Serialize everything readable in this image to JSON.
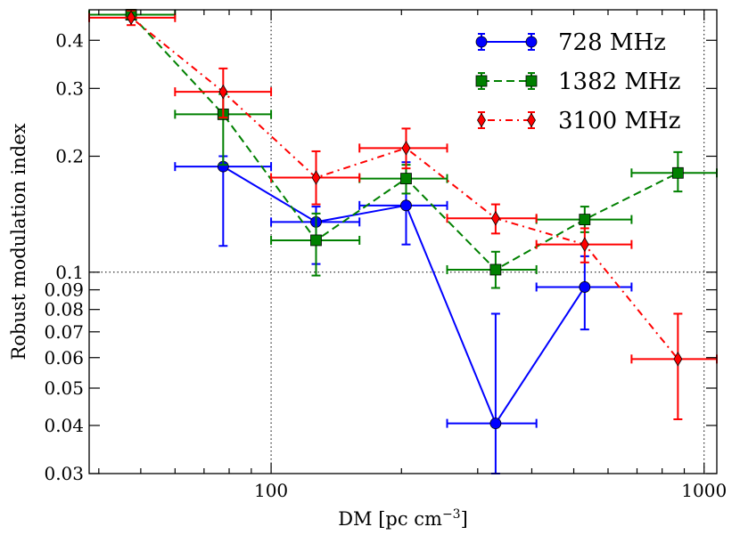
{
  "chart_data": {
    "type": "scatter",
    "title": "",
    "xlabel": "DM [pc cm",
    "xlabel_sup": "−3",
    "xlabel_end": "]",
    "ylabel": "Robust modulation index",
    "xscale": "log",
    "yscale": "log",
    "xlim": [
      38,
      1070
    ],
    "ylim": [
      0.03,
      0.48
    ],
    "x_ticks": [
      {
        "value": 100,
        "label": "100"
      },
      {
        "value": 1000,
        "label": "1000"
      }
    ],
    "y_ticks": [
      {
        "value": 0.4,
        "label": "0.4"
      },
      {
        "value": 0.3,
        "label": "0.3"
      },
      {
        "value": 0.2,
        "label": "0.2"
      },
      {
        "value": 0.1,
        "label": "0.1"
      },
      {
        "value": 0.09,
        "label": "0.09"
      },
      {
        "value": 0.08,
        "label": "0.08"
      },
      {
        "value": 0.07,
        "label": "0.07"
      },
      {
        "value": 0.06,
        "label": "0.06"
      },
      {
        "value": 0.05,
        "label": "0.05"
      },
      {
        "value": 0.04,
        "label": "0.04"
      },
      {
        "value": 0.03,
        "label": "0.03"
      }
    ],
    "reference_lines": {
      "x": [
        100,
        1000
      ],
      "y": [
        0.1
      ]
    },
    "legend_position": "top-right",
    "series": [
      {
        "name": "728 MHz",
        "color": "#0000ff",
        "marker": "circle",
        "linestyle": "solid",
        "points": [
          {
            "x": 77.5,
            "y": 0.188,
            "xlo": 60,
            "xhi": 100,
            "ylo": 0.117,
            "yhi": 0.2
          },
          {
            "x": 127,
            "y": 0.135,
            "xlo": 100,
            "xhi": 160,
            "ylo": 0.105,
            "yhi": 0.148
          },
          {
            "x": 205,
            "y": 0.149,
            "xlo": 160,
            "xhi": 255,
            "ylo": 0.118,
            "yhi": 0.193
          },
          {
            "x": 330,
            "y": 0.0405,
            "xlo": 255,
            "xhi": 410,
            "ylo": 0.03,
            "yhi": 0.078
          },
          {
            "x": 530,
            "y": 0.0915,
            "xlo": 410,
            "xhi": 680,
            "ylo": 0.071,
            "yhi": 0.11
          }
        ]
      },
      {
        "name": "1382 MHz",
        "color": "#008000",
        "marker": "square",
        "linestyle": "dashed",
        "points": [
          {
            "x": 47.5,
            "y": 0.466,
            "xlo": 38,
            "xhi": 60,
            "ylo": 0.455,
            "yhi": 0.48
          },
          {
            "x": 77.5,
            "y": 0.257,
            "xlo": 60,
            "xhi": 100,
            "ylo": 0.19,
            "yhi": 0.29
          },
          {
            "x": 127,
            "y": 0.121,
            "xlo": 100,
            "xhi": 160,
            "ylo": 0.098,
            "yhi": 0.142
          },
          {
            "x": 205,
            "y": 0.175,
            "xlo": 160,
            "xhi": 255,
            "ylo": 0.16,
            "yhi": 0.19
          },
          {
            "x": 330,
            "y": 0.1015,
            "xlo": 255,
            "xhi": 410,
            "ylo": 0.091,
            "yhi": 0.113
          },
          {
            "x": 530,
            "y": 0.137,
            "xlo": 410,
            "xhi": 680,
            "ylo": 0.127,
            "yhi": 0.148
          },
          {
            "x": 870,
            "y": 0.181,
            "xlo": 680,
            "xhi": 1070,
            "ylo": 0.162,
            "yhi": 0.205
          }
        ]
      },
      {
        "name": "3100 MHz",
        "color": "#ff0000",
        "marker": "diamond",
        "linestyle": "dashdot",
        "points": [
          {
            "x": 47.5,
            "y": 0.458,
            "xlo": 38,
            "xhi": 60,
            "ylo": 0.438,
            "yhi": 0.478
          },
          {
            "x": 77.5,
            "y": 0.294,
            "xlo": 60,
            "xhi": 100,
            "ylo": 0.252,
            "yhi": 0.338
          },
          {
            "x": 127,
            "y": 0.176,
            "xlo": 100,
            "xhi": 160,
            "ylo": 0.15,
            "yhi": 0.206
          },
          {
            "x": 205,
            "y": 0.21,
            "xlo": 160,
            "xhi": 255,
            "ylo": 0.186,
            "yhi": 0.236
          },
          {
            "x": 330,
            "y": 0.138,
            "xlo": 255,
            "xhi": 410,
            "ylo": 0.126,
            "yhi": 0.15
          },
          {
            "x": 530,
            "y": 0.118,
            "xlo": 410,
            "xhi": 680,
            "ylo": 0.106,
            "yhi": 0.13
          },
          {
            "x": 870,
            "y": 0.0595,
            "xlo": 680,
            "xhi": 1070,
            "ylo": 0.0415,
            "yhi": 0.078
          }
        ]
      }
    ]
  }
}
